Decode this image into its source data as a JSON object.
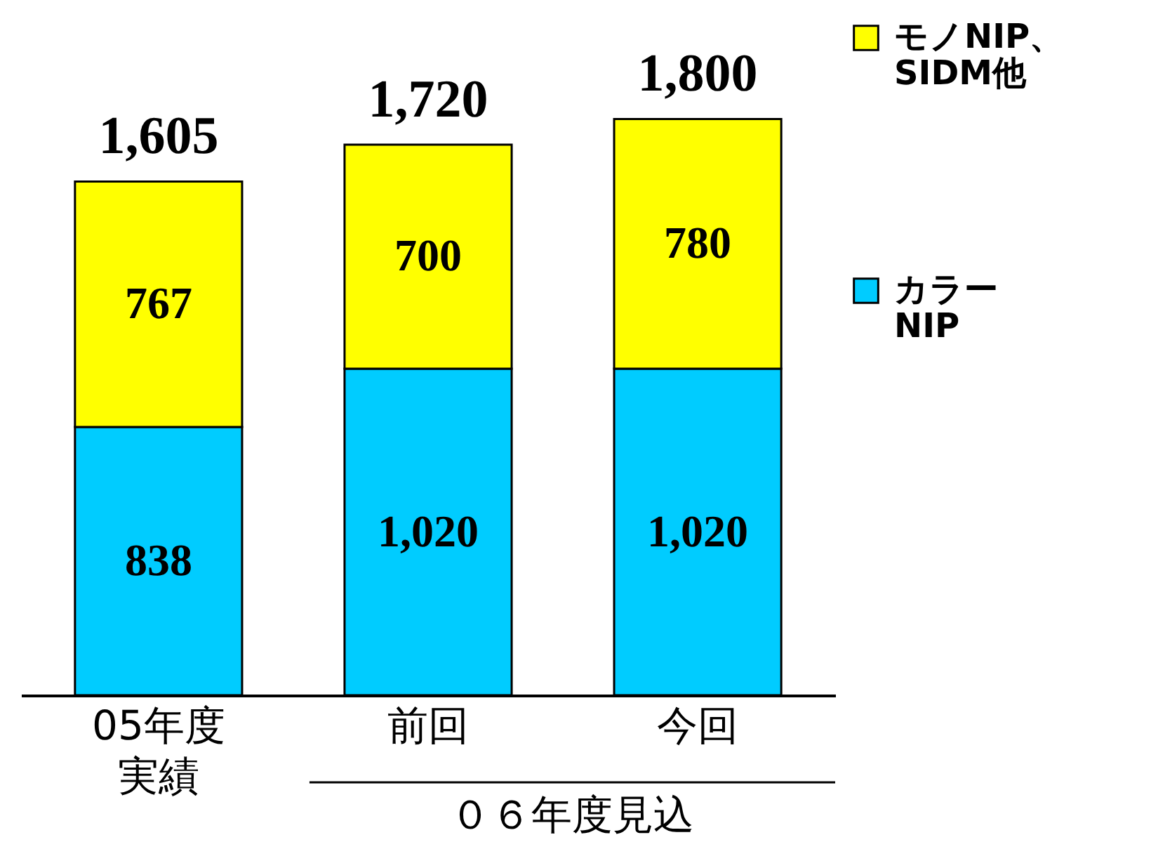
{
  "chart_data": {
    "type": "bar",
    "stacked": true,
    "categories": [
      "05年度実績",
      "前回",
      "今回"
    ],
    "series": [
      {
        "name": "カラーNIP",
        "color": "#00ccff",
        "values": [
          838,
          1020,
          1020
        ],
        "value_labels": [
          "838",
          "1,020",
          "1,020"
        ]
      },
      {
        "name": "モノNIP、SIDM他",
        "color": "#ffff00",
        "values": [
          767,
          700,
          780
        ],
        "value_labels": [
          "767",
          "700",
          "780"
        ]
      }
    ],
    "totals": [
      "1,605",
      "1,720",
      "1,800"
    ],
    "legend": "right",
    "tick_labels": "x",
    "annotations": [
      "０６年度見込"
    ]
  }
}
